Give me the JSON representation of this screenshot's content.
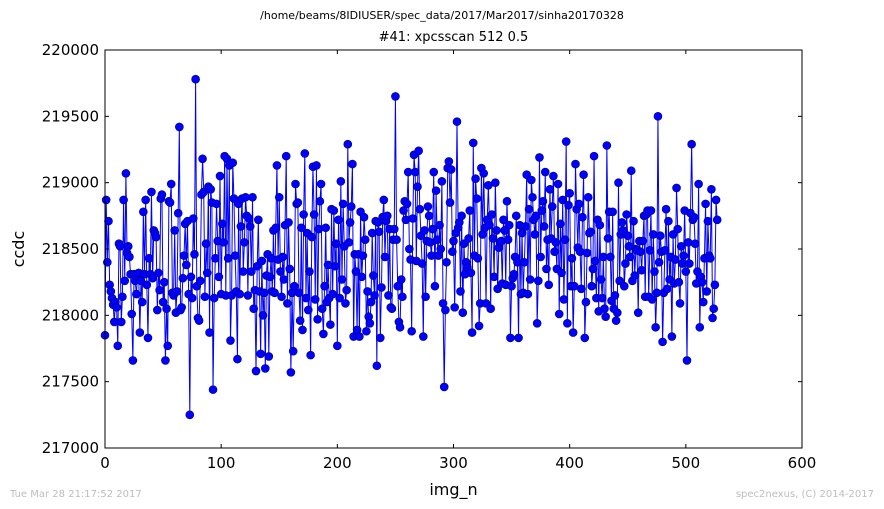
{
  "header": {
    "path": "/home/beams/8IDIUSER/spec_data/2017/Mar2017/sinha20170328"
  },
  "footer": {
    "timestamp": "Tue Mar 28 21:17:52 2017",
    "credit": "spec2nexus, (C) 2014-2017"
  },
  "colors": {
    "series": "#0000ff",
    "marker_edge": "#00007a",
    "background": "#ffffff",
    "footer_text": "#bdbdbd"
  },
  "chart_data": {
    "type": "line",
    "title": "#41: xpcsscan 512 0.5",
    "xlabel": "img_n",
    "ylabel": "ccdc",
    "xlim": [
      0,
      600
    ],
    "ylim": [
      217000,
      220000
    ],
    "xticks": [
      "0",
      "100",
      "200",
      "300",
      "400",
      "500",
      "600"
    ],
    "yticks": [
      "217000",
      "217500",
      "218000",
      "218500",
      "219000",
      "219500",
      "220000"
    ],
    "grid": false,
    "markers": "circle",
    "x_start": 0,
    "x_step": 1,
    "y": [
      217850,
      218870,
      218400,
      218710,
      218230,
      218180,
      218130,
      218080,
      217950,
      218100,
      218060,
      217770,
      218540,
      218520,
      217950,
      218140,
      218870,
      218260,
      219070,
      218470,
      218520,
      218440,
      218310,
      218010,
      217660,
      218310,
      218260,
      218160,
      218290,
      218320,
      217870,
      218260,
      218100,
      218780,
      218310,
      218870,
      218230,
      217830,
      218430,
      218310,
      218930,
      218280,
      218640,
      218620,
      218590,
      218040,
      218320,
      218190,
      218880,
      218910,
      218100,
      218250,
      217660,
      218050,
      217770,
      218860,
      218850,
      218990,
      218170,
      218150,
      218640,
      218020,
      218180,
      218770,
      219420,
      218040,
      218060,
      218280,
      218450,
      218690,
      218380,
      218710,
      218160,
      217250,
      218290,
      218130,
      218730,
      218460,
      219780,
      218220,
      217980,
      217960,
      218260,
      218910,
      219180,
      218930,
      218140,
      218540,
      218320,
      218970,
      217870,
      218950,
      218850,
      217440,
      218130,
      218430,
      218840,
      218560,
      218290,
      219050,
      218160,
      218690,
      218550,
      219200,
      218150,
      219180,
      218430,
      219130,
      217810,
      218150,
      219150,
      218880,
      218450,
      218180,
      217670,
      218840,
      218160,
      218670,
      218880,
      218330,
      218550,
      218890,
      218750,
      218150,
      218730,
      218670,
      218330,
      218890,
      218050,
      218190,
      217580,
      218370,
      218720,
      218180,
      217710,
      218410,
      218000,
      218170,
      217600,
      218300,
      218460,
      217690,
      218290,
      218430,
      218180,
      218640,
      218170,
      218660,
      219130,
      218420,
      218890,
      218330,
      218140,
      218440,
      218270,
      218680,
      219200,
      218090,
      218700,
      218350,
      217570,
      218170,
      217730,
      218220,
      218990,
      218840,
      218850,
      218170,
      217960,
      218660,
      217890,
      218760,
      219220,
      218130,
      218620,
      218040,
      218330,
      217700,
      218590,
      219120,
      218760,
      218120,
      219130,
      217970,
      218650,
      218860,
      218990,
      218050,
      217860,
      218220,
      218660,
      218100,
      218380,
      218130,
      217930,
      218800,
      218160,
      218790,
      218370,
      218540,
      217770,
      218720,
      218130,
      219010,
      218270,
      218840,
      218520,
      218090,
      218190,
      219290,
      218550,
      218700,
      218820,
      219140,
      217840,
      218460,
      218330,
      217890,
      218460,
      217840,
      218780,
      218290,
      218450,
      218740,
      218570,
      217880,
      218180,
      217990,
      217940,
      218100,
      218620,
      218300,
      218150,
      218710,
      217620,
      218700,
      218630,
      217830,
      218210,
      218740,
      218870,
      218440,
      218710,
      218750,
      218150,
      218650,
      218060,
      218050,
      218570,
      218650,
      219650,
      218570,
      218220,
      217950,
      217910,
      218270,
      218140,
      218790,
      218860,
      218720,
      218840,
      219080,
      218500,
      218420,
      217880,
      218730,
      219210,
      219080,
      218410,
      218970,
      219240,
      218800,
      218600,
      218390,
      217840,
      218640,
      218140,
      218560,
      218820,
      218750,
      218550,
      218450,
      218650,
      219080,
      218220,
      218940,
      218570,
      218450,
      218680,
      218500,
      219010,
      218090,
      217460,
      218040,
      218400,
      219110,
      219160,
      218850,
      219100,
      218480,
      218560,
      218060,
      218620,
      219460,
      218660,
      218700,
      218180,
      218750,
      218020,
      218540,
      218310,
      218400,
      218360,
      218580,
      218790,
      218320,
      217870,
      219300,
      218450,
      219030,
      218880,
      218430,
      217920,
      218090,
      219110,
      218610,
      219070,
      218660,
      218090,
      218720,
      218980,
      218680,
      218050,
      218760,
      218580,
      218290,
      219000,
      218640,
      218200,
      218510,
      218550,
      218560,
      218240,
      218720,
      218640,
      218230,
      218860,
      218570,
      218680,
      217830,
      218220,
      218280,
      218310,
      218440,
      218750,
      218400,
      217830,
      218680,
      218160,
      218620,
      218170,
      218400,
      218670,
      219060,
      218160,
      218800,
      218270,
      219020,
      218890,
      218720,
      218610,
      218750,
      217940,
      218260,
      219190,
      218440,
      218790,
      218860,
      218670,
      219080,
      218350,
      218570,
      218230,
      218950,
      218580,
      218820,
      219050,
      218480,
      218550,
      218350,
      218990,
      218010,
      218690,
      218320,
      218870,
      218120,
      218570,
      219310,
      217940,
      218830,
      218920,
      218220,
      218430,
      217870,
      218220,
      219140,
      218800,
      218510,
      218840,
      218480,
      218200,
      218740,
      219060,
      217830,
      218100,
      218470,
      218890,
      218620,
      218630,
      218220,
      218350,
      219200,
      218410,
      218130,
      218720,
      218030,
      218680,
      218270,
      218130,
      218440,
      218050,
      217990,
      219280,
      218580,
      218780,
      218440,
      218110,
      218780,
      218050,
      218150,
      217960,
      218020,
      219000,
      218260,
      218610,
      218700,
      218640,
      218220,
      218390,
      218760,
      218600,
      218520,
      218440,
      219090,
      218260,
      218710,
      218300,
      218500,
      218490,
      218020,
      218560,
      218480,
      218340,
      218560,
      218750,
      218140,
      218760,
      218790,
      218140,
      218490,
      218790,
      218120,
      218610,
      218330,
      217910,
      218170,
      219500,
      218400,
      218600,
      218480,
      217800,
      218170,
      218490,
      218800,
      218200,
      218710,
      218270,
      218440,
      217840,
      218610,
      218240,
      218420,
      218960,
      218650,
      218250,
      218090,
      218520,
      218390,
      218450,
      218790,
      218330,
      217660,
      218550,
      218390,
      218770,
      219290,
      218720,
      218740,
      218540,
      218240,
      218330,
      218990,
      217910,
      218290,
      218250,
      218100,
      218430,
      218840,
      218180,
      218710,
      218450,
      218430,
      218950,
      217980,
      218050,
      218230,
      218870,
      218720
    ]
  }
}
